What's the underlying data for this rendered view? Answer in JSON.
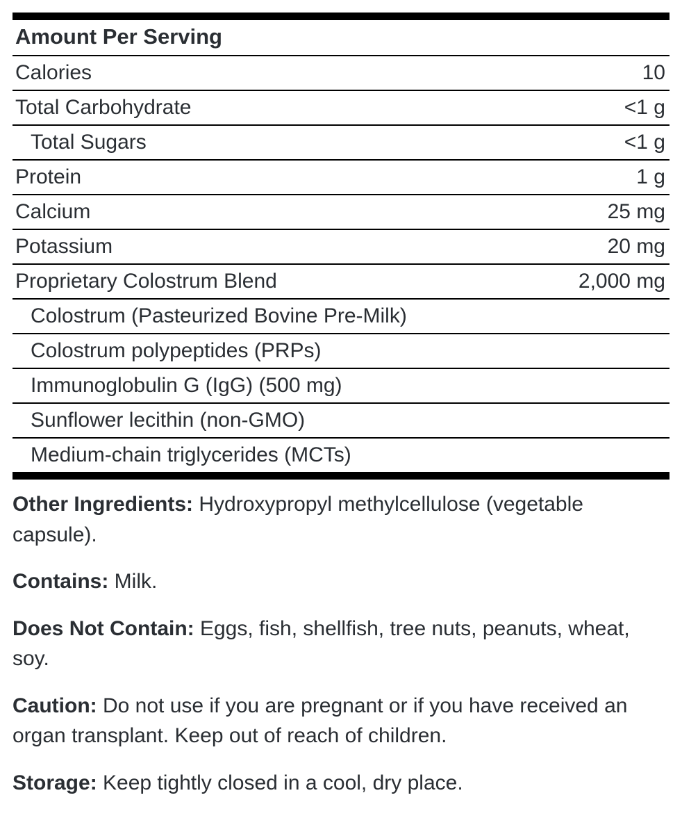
{
  "header": "Amount Per Serving",
  "rows": {
    "calories": {
      "label": "Calories",
      "value": "10"
    },
    "carb": {
      "label": "Total Carbohydrate",
      "value": "<1 g"
    },
    "sugars": {
      "label": "Total Sugars",
      "value": "<1 g"
    },
    "protein": {
      "label": "Protein",
      "value": "1 g"
    },
    "calcium": {
      "label": "Calcium",
      "value": "25 mg"
    },
    "potassium": {
      "label": "Potassium",
      "value": "20 mg"
    },
    "blend": {
      "label": "Proprietary Colostrum Blend",
      "value": "2,000 mg"
    },
    "colostrum": {
      "label": "Colostrum (Pasteurized Bovine Pre-Milk)"
    },
    "prps": {
      "label": "Colostrum polypeptides (PRPs)"
    },
    "igg": {
      "label": "Immunoglobulin G (IgG) (500 mg)"
    },
    "lecithin": {
      "label": "Sunflower lecithin (non-GMO)"
    },
    "mcts": {
      "label": "Medium-chain triglycerides (MCTs)"
    }
  },
  "info": {
    "other_ing_label": "Other Ingredients:",
    "other_ing_text": " Hydroxypropyl methylcellulose (vegetable capsule).",
    "contains_label": "Contains:",
    "contains_text": " Milk.",
    "dnc_label": "Does Not Contain:",
    "dnc_text": " Eggs, fish, shellfish, tree nuts, peanuts, wheat, soy.",
    "caution_label": "Caution:",
    "caution_text": " Do not use if you are pregnant or if you have received an organ transplant. Keep out of reach of children.",
    "storage_label": "Storage:",
    "storage_text": "  Keep tightly closed in a cool, dry place."
  }
}
